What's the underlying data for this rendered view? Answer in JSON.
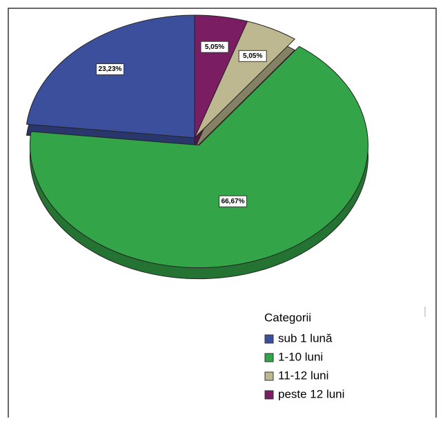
{
  "chart_data": {
    "type": "pie",
    "categories": [
      "sub 1 lună",
      "1-10 luni",
      "11-12 luni",
      "peste 12 luni"
    ],
    "values": [
      23.23,
      66.67,
      5.05,
      5.05
    ],
    "value_labels": [
      "23,23%",
      "66,67%",
      "5,05%",
      "5,05%"
    ],
    "colors": [
      "#3b4f9c",
      "#33a548",
      "#bdb890",
      "#7a1d63"
    ],
    "legend_title": "Categorii",
    "legend_position": "lower right"
  }
}
